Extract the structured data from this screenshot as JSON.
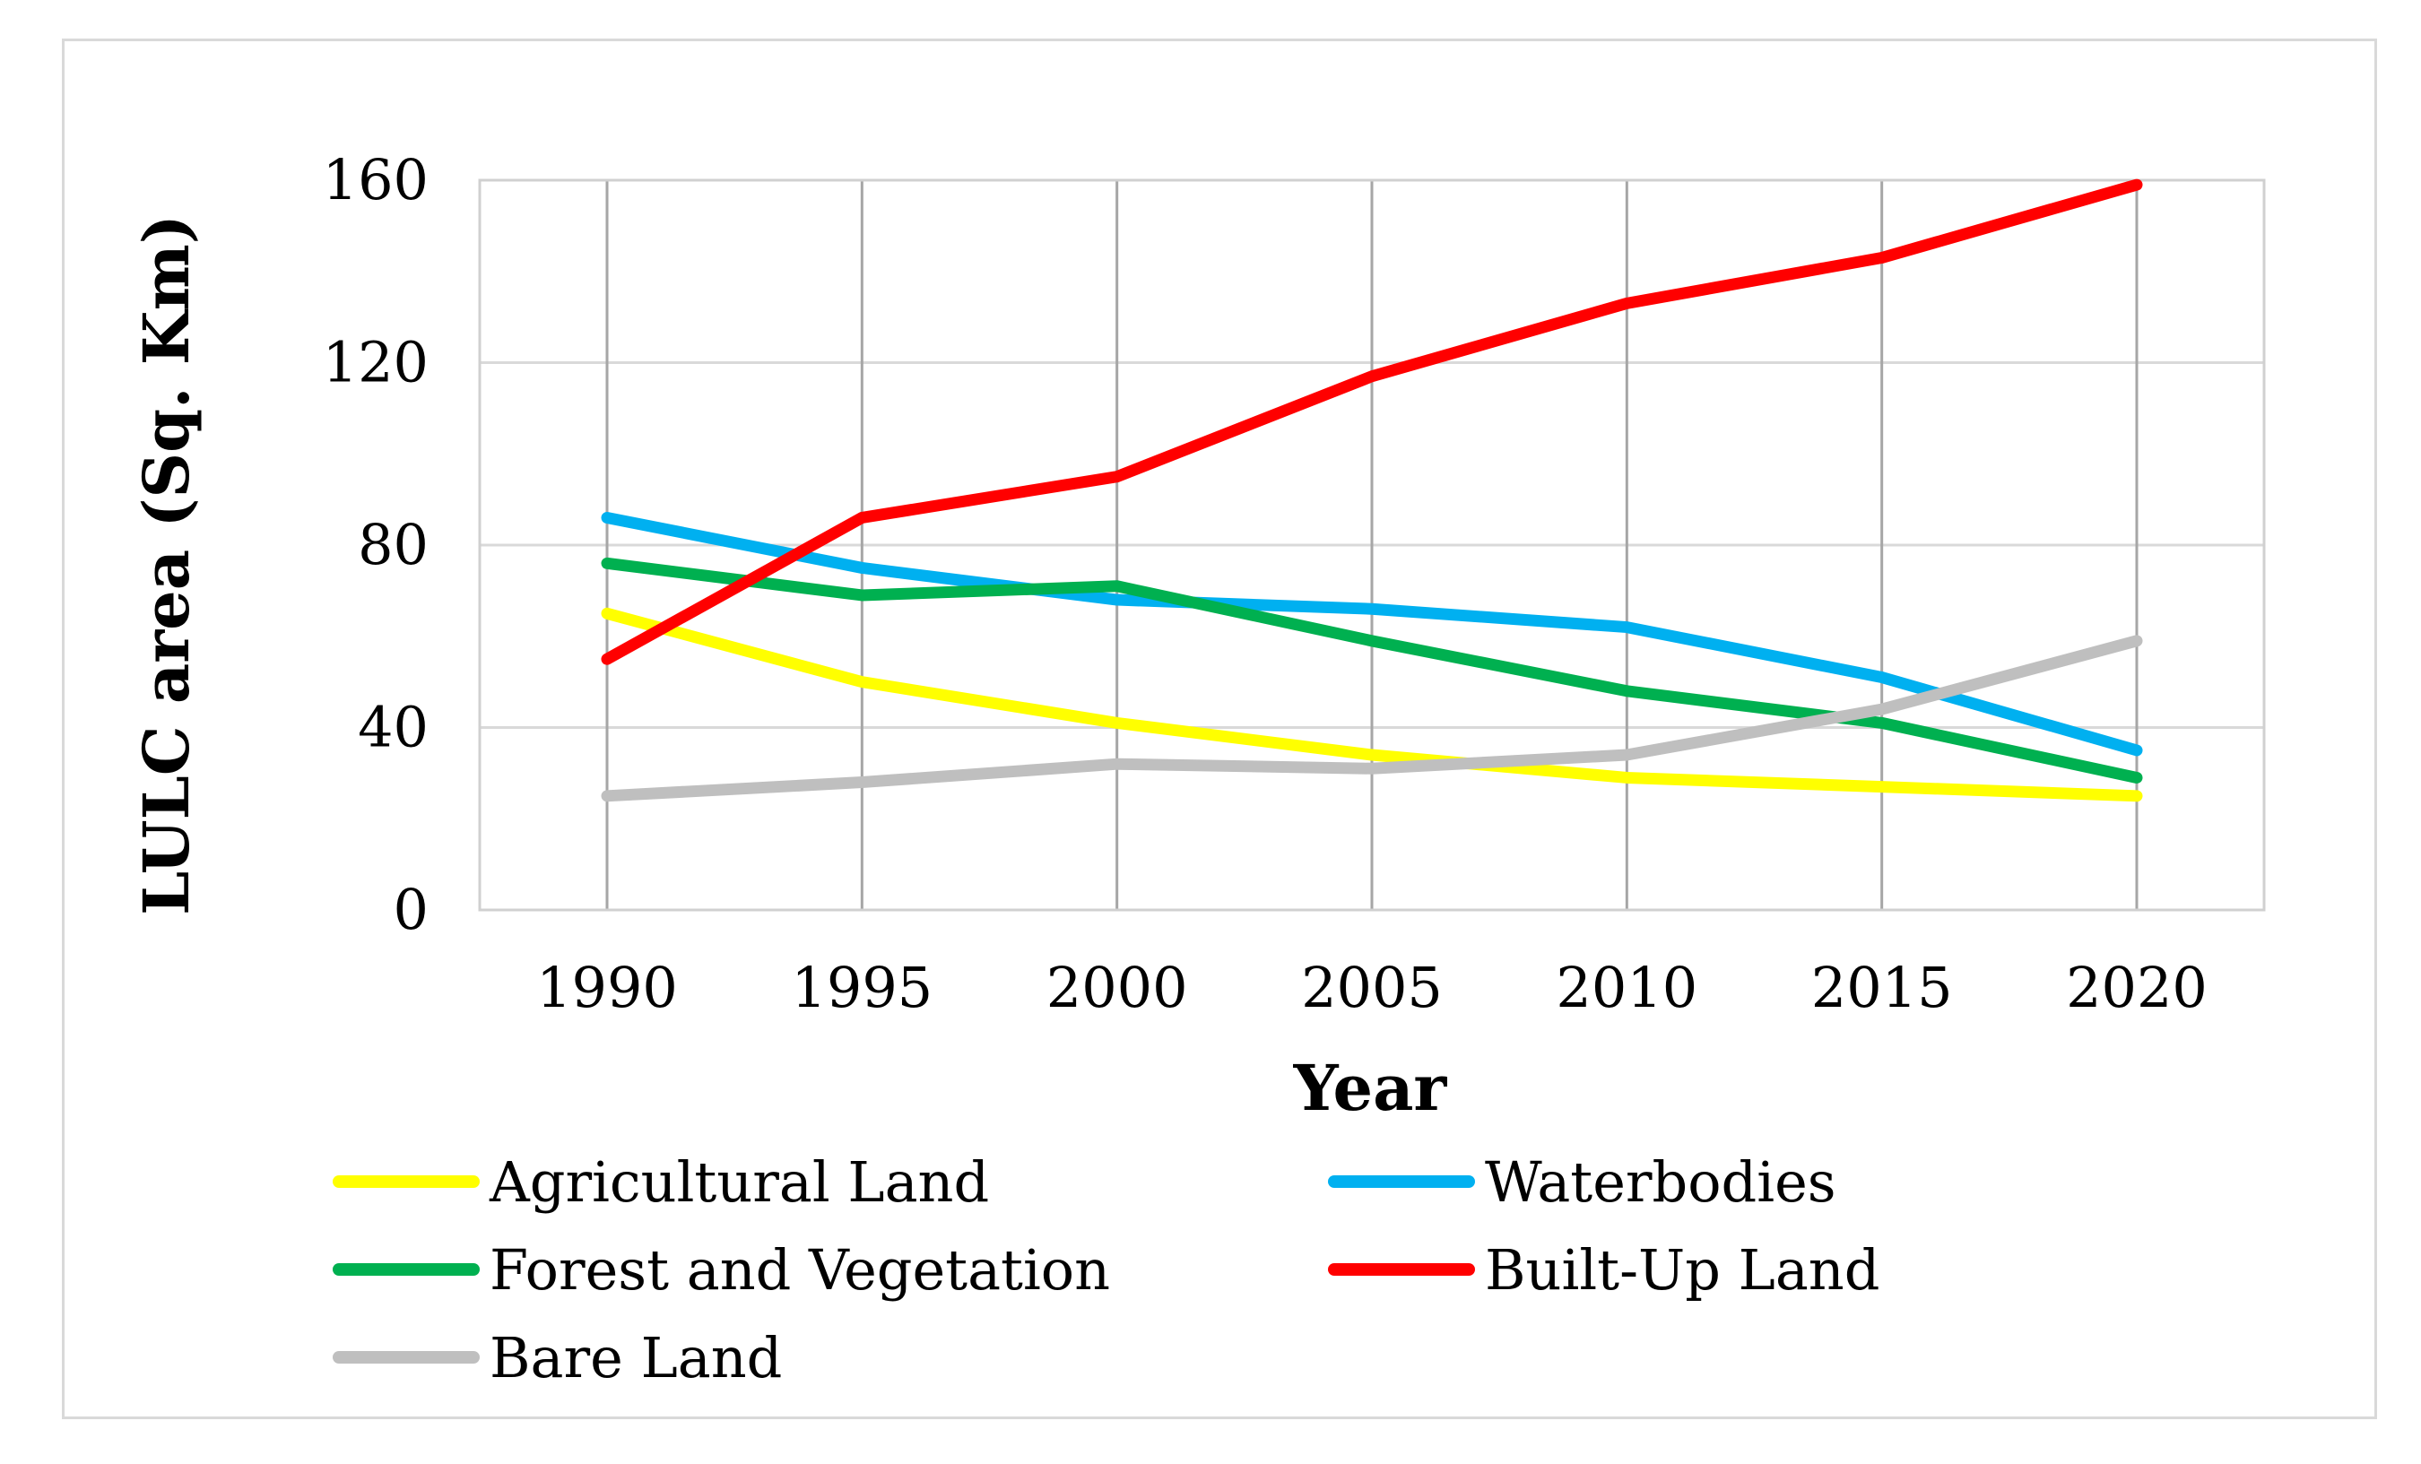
{
  "chart_data": {
    "type": "line",
    "title": "",
    "xlabel": "Year",
    "ylabel": "LULC area (Sq. Km)",
    "categories": [
      "1990",
      "1995",
      "2000",
      "2005",
      "2010",
      "2015",
      "2020"
    ],
    "ylim": [
      0,
      160
    ],
    "yticks": [
      "0",
      "40",
      "80",
      "120",
      "160"
    ],
    "grid": true,
    "legend_position": "bottom",
    "series": [
      {
        "name": "Agricultural Land",
        "color": "#ffff00",
        "values": [
          65,
          50,
          41,
          34,
          29,
          27,
          25
        ]
      },
      {
        "name": "Waterbodies",
        "color": "#00b0f0",
        "values": [
          86,
          75,
          68,
          66,
          62,
          51,
          35
        ]
      },
      {
        "name": "Forest and Vegetation",
        "color": "#00b050",
        "values": [
          76,
          69,
          71,
          59,
          48,
          41,
          29
        ]
      },
      {
        "name": "Built-Up Land",
        "color": "#ff0000",
        "values": [
          55,
          86,
          95,
          117,
          133,
          143,
          159
        ]
      },
      {
        "name": "Bare Land",
        "color": "#bfbfbf",
        "values": [
          25,
          28,
          32,
          31,
          34,
          44,
          59
        ]
      }
    ]
  }
}
